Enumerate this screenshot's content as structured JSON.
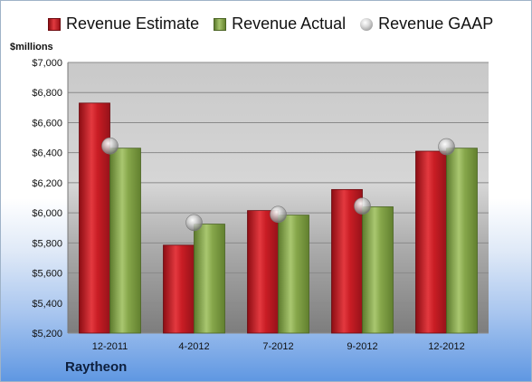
{
  "chart_data": {
    "type": "bar",
    "ylabel": "$millions",
    "categories": [
      "12-2011",
      "4-2012",
      "7-2012",
      "9-2012",
      "12-2012"
    ],
    "series": [
      {
        "name": "Revenue Estimate",
        "values": [
          6730,
          5785,
          6015,
          6155,
          6410
        ]
      },
      {
        "name": "Revenue Actual",
        "values": [
          6430,
          5925,
          5985,
          6040,
          6430
        ]
      }
    ],
    "markers": {
      "name": "Revenue GAAP",
      "values": [
        6445,
        5935,
        5990,
        6045,
        6440
      ]
    },
    "ylim": [
      5200,
      7000
    ],
    "yticks": [
      5200,
      5400,
      5600,
      5800,
      6000,
      6200,
      6400,
      6600,
      6800,
      7000
    ],
    "ytick_labels": [
      "$5,200",
      "$5,400",
      "$5,600",
      "$5,800",
      "$6,000",
      "$6,200",
      "$6,400",
      "$6,600",
      "$6,800",
      "$7,000"
    ],
    "grid": true,
    "legend_position": "top",
    "colors": {
      "estimate": "#c0161d",
      "actual": "#7f9f43",
      "gaap": "#a0a0a0"
    }
  },
  "footer": {
    "company": "Raytheon"
  }
}
